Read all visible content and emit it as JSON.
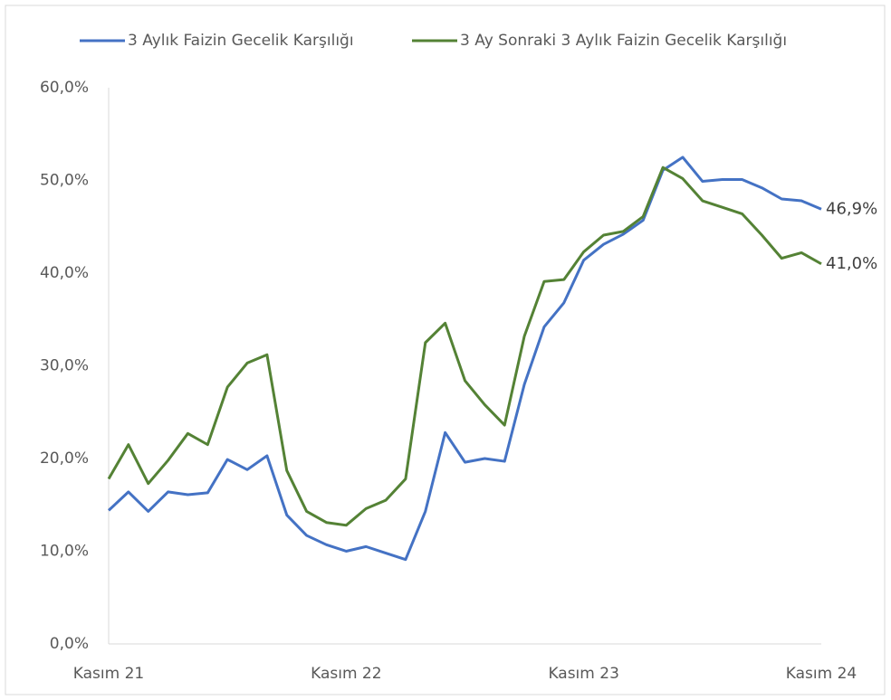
{
  "chart_data": {
    "type": "line",
    "categories": [
      "Kasım 21",
      null,
      null,
      null,
      null,
      null,
      null,
      null,
      null,
      null,
      null,
      null,
      "Kasım 22",
      null,
      null,
      null,
      null,
      null,
      null,
      null,
      null,
      null,
      null,
      null,
      "Kasım 23",
      null,
      null,
      null,
      null,
      null,
      null,
      null,
      null,
      null,
      null,
      null,
      "Kasım 24"
    ],
    "series": [
      {
        "name": "3 Aylık Faizin Gecelik Karşılığı",
        "color": "#4472c4",
        "values": [
          14.4,
          16.4,
          14.3,
          16.4,
          16.1,
          16.3,
          19.9,
          18.8,
          20.3,
          13.9,
          11.7,
          10.7,
          10.0,
          10.5,
          9.8,
          9.1,
          14.3,
          22.8,
          19.6,
          20.0,
          19.7,
          28.0,
          34.2,
          36.8,
          41.4,
          43.1,
          44.2,
          45.7,
          51.1,
          52.5,
          49.9,
          50.1,
          50.1,
          49.2,
          48.0,
          47.8,
          46.9
        ],
        "value_labels": [
          null,
          null,
          null,
          null,
          null,
          null,
          null,
          null,
          null,
          null,
          null,
          null,
          null,
          null,
          null,
          null,
          null,
          null,
          null,
          null,
          null,
          null,
          null,
          null,
          null,
          null,
          null,
          null,
          null,
          null,
          null,
          null,
          null,
          null,
          null,
          null,
          "46,9%"
        ]
      },
      {
        "name": "3 Ay Sonraki 3 Aylık Faizin Gecelik Karşılığı",
        "color": "#548235",
        "values": [
          17.8,
          21.5,
          17.3,
          19.8,
          22.7,
          21.5,
          27.7,
          30.3,
          31.2,
          18.7,
          14.3,
          13.1,
          12.8,
          14.6,
          15.5,
          17.8,
          32.5,
          34.6,
          28.4,
          25.8,
          23.6,
          33.2,
          39.1,
          39.3,
          42.3,
          44.1,
          44.5,
          46.1,
          51.4,
          50.2,
          47.8,
          47.1,
          46.4,
          44.1,
          41.6,
          42.2,
          41.0
        ],
        "value_labels": [
          null,
          null,
          null,
          null,
          null,
          null,
          null,
          null,
          null,
          null,
          null,
          null,
          null,
          null,
          null,
          null,
          null,
          null,
          null,
          null,
          null,
          null,
          null,
          null,
          null,
          null,
          null,
          null,
          null,
          null,
          null,
          null,
          null,
          null,
          null,
          null,
          "41,0%"
        ]
      }
    ],
    "ylim": [
      0,
      60
    ],
    "yticks": [
      {
        "value": 0,
        "label": "0,0%"
      },
      {
        "value": 10,
        "label": "10,0%"
      },
      {
        "value": 20,
        "label": "20,0%"
      },
      {
        "value": 30,
        "label": "30,0%"
      },
      {
        "value": 40,
        "label": "40,0%"
      },
      {
        "value": 50,
        "label": "50,0%"
      },
      {
        "value": 60,
        "label": "60,0%"
      }
    ],
    "grid": false,
    "legend": "top"
  }
}
